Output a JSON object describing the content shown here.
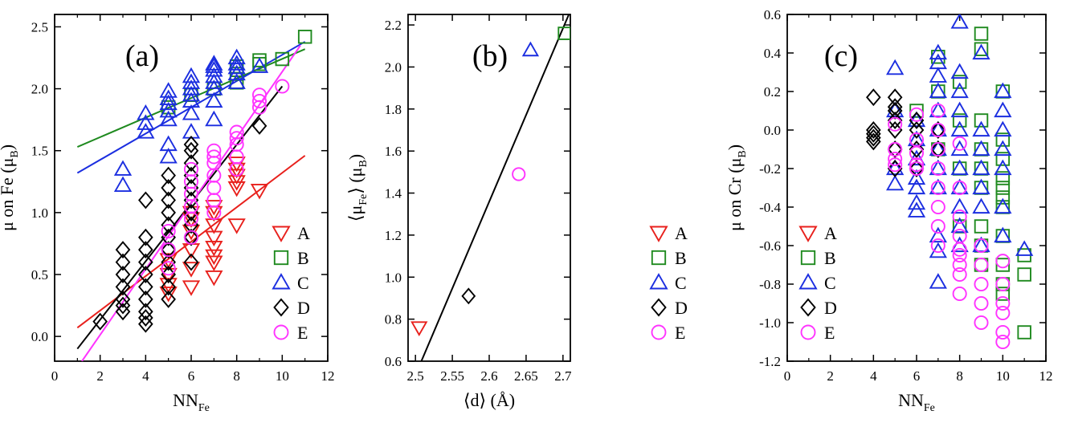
{
  "chart_data": [
    {
      "type": "scatter",
      "panel_label": "(a)",
      "xlabel": "NN",
      "xlabel_sub": "Fe",
      "ylabel": "μ  on Fe (μ",
      "ylabel_sub": "B",
      "ylabel_end": ")",
      "xlim": [
        0,
        12
      ],
      "ylim": [
        -0.2,
        2.6
      ],
      "xticks": [
        0,
        2,
        4,
        6,
        8,
        10,
        12
      ],
      "xtick_labels": [
        "0",
        "2",
        "4",
        "6",
        "8",
        "10",
        "12"
      ],
      "yticks": [
        0.0,
        0.5,
        1.0,
        1.5,
        2.0,
        2.5
      ],
      "ytick_labels": [
        "0.0",
        "0.5",
        "1.0",
        "1.5",
        "2.0",
        "2.5"
      ],
      "legend_position": "bottom-right",
      "series": [
        {
          "name": "A",
          "marker": "triangle-down",
          "color": "#e8201c",
          "x": [
            5,
            5,
            5,
            5,
            6,
            6,
            6,
            6,
            6,
            6,
            7,
            7,
            7,
            7,
            7,
            7,
            7,
            7,
            8,
            8,
            8,
            8,
            8,
            8,
            9
          ],
          "y": [
            0.35,
            0.42,
            0.5,
            0.62,
            0.4,
            0.55,
            0.7,
            0.85,
            0.95,
            1.0,
            0.48,
            0.6,
            0.65,
            0.72,
            0.8,
            0.9,
            1.0,
            1.05,
            0.9,
            1.2,
            1.25,
            1.3,
            1.35,
            1.4,
            1.18
          ],
          "fit": [
            [
              1,
              0.07
            ],
            [
              11,
              1.46
            ]
          ]
        },
        {
          "name": "B",
          "marker": "square",
          "color": "#1f8a1f",
          "x": [
            5,
            6,
            7,
            8,
            8,
            8,
            9,
            9,
            10,
            11
          ],
          "y": [
            1.85,
            1.95,
            2.0,
            2.05,
            2.12,
            2.18,
            2.2,
            2.23,
            2.24,
            2.42
          ],
          "fit": [
            [
              1,
              1.53
            ],
            [
              11,
              2.32
            ]
          ]
        },
        {
          "name": "C",
          "marker": "triangle-up",
          "color": "#1b2ee0",
          "x": [
            3,
            3,
            4,
            4,
            4,
            5,
            5,
            5,
            5,
            5,
            5,
            5,
            6,
            6,
            6,
            6,
            6,
            6,
            6,
            7,
            7,
            7,
            7,
            7,
            7,
            7,
            7,
            8,
            8,
            8,
            8,
            8,
            9
          ],
          "y": [
            1.22,
            1.35,
            1.65,
            1.72,
            1.8,
            1.45,
            1.55,
            1.75,
            1.82,
            1.88,
            1.92,
            1.98,
            1.65,
            1.8,
            1.9,
            1.95,
            2.0,
            2.05,
            2.1,
            1.75,
            1.9,
            2.0,
            2.05,
            2.1,
            2.15,
            2.18,
            2.2,
            2.05,
            2.12,
            2.17,
            2.2,
            2.25,
            2.18
          ],
          "fit": [
            [
              1,
              1.32
            ],
            [
              11,
              2.38
            ]
          ]
        },
        {
          "name": "D",
          "marker": "diamond",
          "color": "#000000",
          "x": [
            2,
            3,
            3,
            3,
            3,
            3,
            3,
            3,
            4,
            4,
            4,
            4,
            4,
            4,
            4,
            4,
            4,
            4,
            5,
            5,
            5,
            5,
            5,
            5,
            5,
            5,
            5,
            5,
            5,
            6,
            6,
            6,
            6,
            6,
            6,
            6,
            6,
            6,
            6,
            9
          ],
          "y": [
            0.12,
            0.2,
            0.3,
            0.4,
            0.5,
            0.6,
            0.7,
            0.25,
            0.1,
            0.2,
            0.3,
            0.4,
            0.5,
            0.6,
            0.7,
            0.8,
            0.15,
            1.1,
            0.3,
            0.4,
            0.5,
            0.6,
            0.7,
            0.8,
            0.9,
            1.0,
            1.1,
            1.2,
            1.3,
            0.6,
            0.8,
            1.0,
            1.1,
            1.2,
            1.3,
            1.4,
            1.5,
            1.55,
            0.9,
            1.7
          ],
          "fit": [
            [
              1,
              -0.1
            ],
            [
              10,
              2.02
            ]
          ]
        },
        {
          "name": "E",
          "marker": "circle",
          "color": "#ff33ff",
          "x": [
            5,
            5,
            5,
            6,
            6,
            6,
            6,
            6,
            6,
            7,
            7,
            7,
            7,
            7,
            7,
            7,
            8,
            8,
            8,
            8,
            8,
            9,
            9,
            9,
            10
          ],
          "y": [
            0.55,
            0.7,
            0.85,
            0.8,
            0.95,
            1.05,
            1.15,
            1.25,
            1.35,
            1.0,
            1.1,
            1.2,
            1.3,
            1.4,
            1.5,
            1.45,
            1.35,
            1.45,
            1.55,
            1.6,
            1.65,
            1.85,
            1.9,
            1.95,
            2.02
          ],
          "fit": [
            [
              1.2,
              -0.2
            ],
            [
              10.8,
              2.35
            ]
          ]
        }
      ]
    },
    {
      "type": "scatter",
      "panel_label": "(b)",
      "xlabel": "⟨d⟩ (Å)",
      "ylabel": "⟨μ",
      "ylabel_sub": "Fe",
      "ylabel_end": "⟩ (μ",
      "ylabel_sub2": "B",
      "ylabel_end2": ")",
      "xlim": [
        2.49,
        2.71
      ],
      "ylim": [
        0.6,
        2.25
      ],
      "xticks": [
        2.5,
        2.55,
        2.6,
        2.65,
        2.7
      ],
      "xtick_labels": [
        "2.5",
        "2.55",
        "2.6",
        "2.65",
        "2.7"
      ],
      "yticks": [
        0.6,
        0.8,
        1.0,
        1.2,
        1.4,
        1.6,
        1.8,
        2.0,
        2.2
      ],
      "ytick_labels": [
        "0.6",
        "0.8",
        "1.0",
        "1.2",
        "1.4",
        "1.6",
        "1.8",
        "2.0",
        "2.2"
      ],
      "legend_position": "bottom-right",
      "fit": [
        [
          2.508,
          0.6
        ],
        [
          2.708,
          2.25
        ]
      ],
      "series": [
        {
          "name": "A",
          "marker": "triangle-down",
          "color": "#e8201c",
          "x": [
            2.505
          ],
          "y": [
            0.76
          ]
        },
        {
          "name": "B",
          "marker": "square",
          "color": "#1f8a1f",
          "x": [
            2.702
          ],
          "y": [
            2.16
          ]
        },
        {
          "name": "C",
          "marker": "triangle-up",
          "color": "#1b2ee0",
          "x": [
            2.656
          ],
          "y": [
            2.08
          ]
        },
        {
          "name": "D",
          "marker": "diamond",
          "color": "#000000",
          "x": [
            2.572
          ],
          "y": [
            0.91
          ]
        },
        {
          "name": "E",
          "marker": "circle",
          "color": "#ff33ff",
          "x": [
            2.64
          ],
          "y": [
            1.49
          ]
        }
      ]
    },
    {
      "type": "scatter",
      "panel_label": "(c)",
      "xlabel": "NN",
      "xlabel_sub": "Fe",
      "ylabel": "μ  on Cr (μ",
      "ylabel_sub": "B",
      "ylabel_end": ")",
      "xlim": [
        0,
        12
      ],
      "ylim": [
        -1.2,
        0.6
      ],
      "xticks": [
        0,
        2,
        4,
        6,
        8,
        10,
        12
      ],
      "xtick_labels": [
        "0",
        "2",
        "4",
        "6",
        "8",
        "10",
        "12"
      ],
      "yticks": [
        -1.2,
        -1.0,
        -0.8,
        -0.6,
        -0.4,
        -0.2,
        0.0,
        0.2,
        0.4,
        0.6
      ],
      "ytick_labels": [
        "-1.2",
        "-1.0",
        "-0.8",
        "-0.6",
        "-0.4",
        "-0.2",
        "0.0",
        "0.2",
        "0.4",
        "0.6"
      ],
      "legend_position": "bottom-left",
      "series": [
        {
          "name": "A",
          "marker": "triangle-down",
          "color": "#e8201c",
          "x": [],
          "y": []
        },
        {
          "name": "B",
          "marker": "square",
          "color": "#1f8a1f",
          "x": [
            6,
            7,
            7,
            7,
            8,
            8,
            8,
            8,
            9,
            9,
            9,
            9,
            9,
            9,
            9,
            9,
            9,
            10,
            10,
            10,
            10,
            10,
            10,
            10,
            10,
            10,
            10,
            10,
            11,
            11,
            11
          ],
          "y": [
            0.1,
            0.38,
            0.2,
            -0.1,
            0.25,
            0.05,
            -0.2,
            -0.5,
            0.5,
            0.42,
            0.05,
            -0.1,
            -0.2,
            -0.3,
            -0.5,
            -0.6,
            -0.7,
            0.2,
            -0.05,
            -0.15,
            -0.25,
            -0.3,
            -0.35,
            -0.4,
            -0.55,
            -0.7,
            -0.8,
            -0.85,
            -0.65,
            -0.75,
            -1.05
          ]
        },
        {
          "name": "C",
          "marker": "triangle-up",
          "color": "#1b2ee0",
          "x": [
            5,
            5,
            5,
            5,
            6,
            6,
            6,
            6,
            6,
            6,
            6,
            7,
            7,
            7,
            7,
            7,
            7,
            7,
            7,
            7,
            7,
            7,
            7,
            8,
            8,
            8,
            8,
            8,
            8,
            8,
            8,
            8,
            8,
            8,
            9,
            9,
            9,
            9,
            9,
            9,
            9,
            10,
            10,
            10,
            10,
            10,
            10,
            10,
            11
          ],
          "y": [
            0.32,
            0.1,
            -0.2,
            -0.28,
            0.05,
            -0.05,
            -0.15,
            -0.25,
            -0.3,
            -0.38,
            -0.42,
            0.4,
            0.35,
            0.28,
            0.2,
            0.1,
            0.0,
            -0.1,
            -0.2,
            -0.3,
            -0.55,
            -0.63,
            -0.79,
            0.56,
            0.3,
            0.2,
            0.1,
            0.0,
            -0.1,
            -0.2,
            -0.3,
            -0.4,
            -0.5,
            -0.6,
            0.4,
            0.0,
            -0.1,
            -0.2,
            -0.3,
            -0.4,
            -0.6,
            0.2,
            0.1,
            0.0,
            -0.1,
            -0.2,
            -0.4,
            -0.55,
            -0.62
          ]
        },
        {
          "name": "D",
          "marker": "diamond",
          "color": "#000000",
          "x": [
            4,
            4,
            4,
            4,
            4,
            5,
            5,
            5,
            5,
            5,
            5,
            5,
            6,
            6,
            6,
            6,
            7,
            7
          ],
          "y": [
            0.17,
            0.0,
            -0.02,
            -0.04,
            -0.06,
            0.17,
            0.12,
            0.1,
            0.05,
            0.0,
            -0.1,
            -0.2,
            0.05,
            0.0,
            -0.1,
            -0.2,
            0.0,
            -0.1
          ]
        },
        {
          "name": "E",
          "marker": "circle",
          "color": "#ff33ff",
          "x": [
            5,
            5,
            5,
            5,
            6,
            6,
            6,
            6,
            6,
            7,
            7,
            7,
            7,
            7,
            7,
            7,
            7,
            8,
            8,
            8,
            8,
            8,
            8,
            8,
            8,
            8,
            9,
            9,
            9,
            9,
            9,
            10,
            10,
            10,
            10,
            10,
            10
          ],
          "y": [
            0.03,
            -0.1,
            -0.15,
            -0.18,
            0.08,
            -0.05,
            -0.12,
            -0.18,
            -0.2,
            0.1,
            0.0,
            -0.1,
            -0.2,
            -0.3,
            -0.4,
            -0.5,
            -0.6,
            -0.07,
            -0.3,
            -0.45,
            -0.55,
            -0.62,
            -0.65,
            -0.7,
            -0.75,
            -0.85,
            -0.6,
            -0.7,
            -0.8,
            -0.9,
            -1.0,
            -0.68,
            -0.8,
            -0.9,
            -0.95,
            -1.05,
            -1.1
          ]
        }
      ]
    }
  ]
}
